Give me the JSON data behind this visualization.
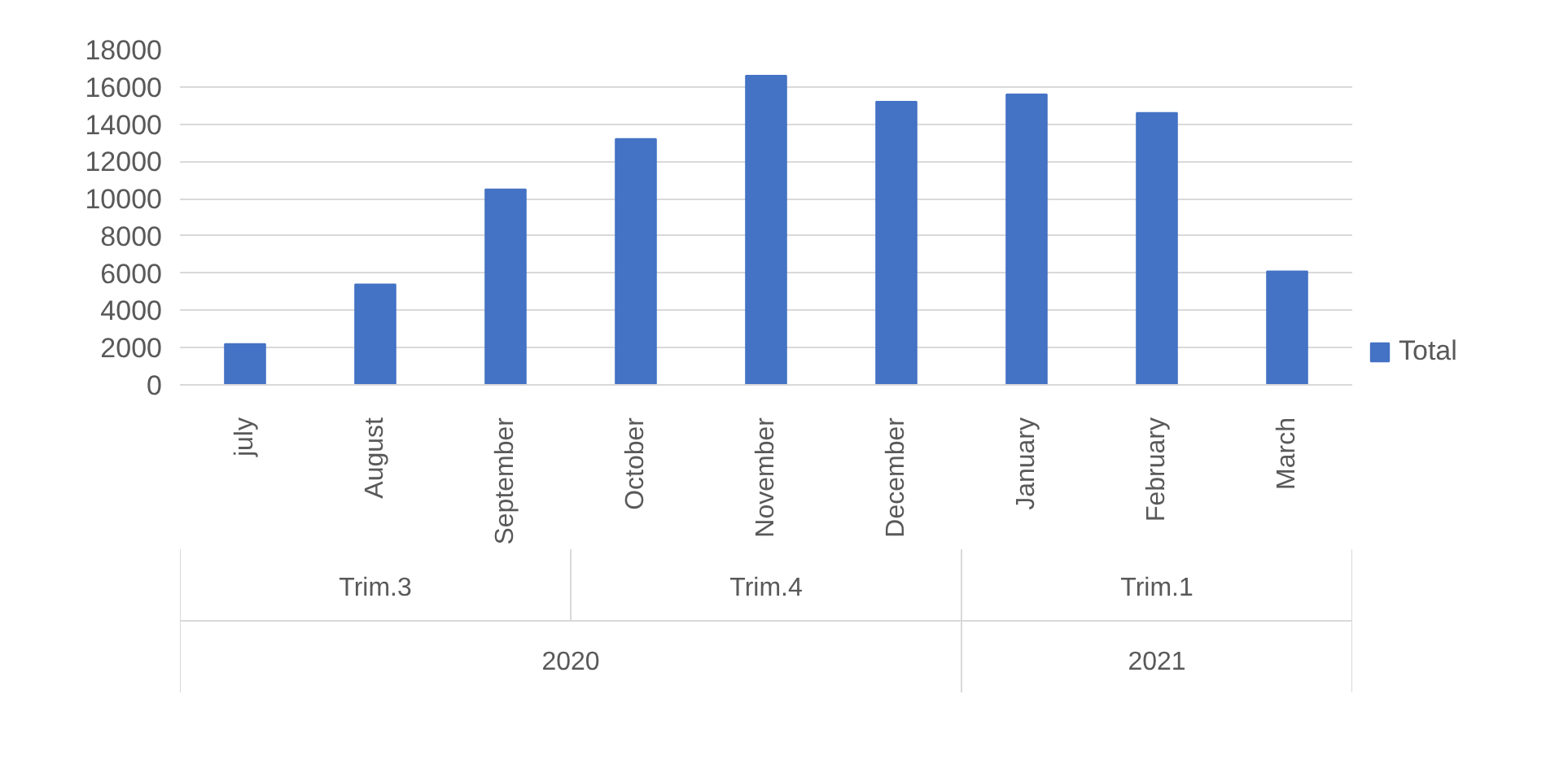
{
  "chart_data": {
    "type": "bar",
    "categories": [
      "july",
      "August",
      "September",
      "October",
      "November",
      "December",
      "January",
      "February",
      "March"
    ],
    "series": [
      {
        "name": "Total",
        "color": "#4472c4",
        "values": [
          2200,
          5400,
          10500,
          13200,
          16600,
          15200,
          15600,
          14600,
          6100
        ]
      }
    ],
    "ylim": [
      0,
      18000
    ],
    "yticks": [
      0,
      2000,
      4000,
      6000,
      8000,
      10000,
      12000,
      14000,
      16000,
      18000
    ],
    "grid": "y",
    "legend": "right",
    "annotations": [
      "Trim.3",
      "Trim.4",
      "Trim.1",
      "2020",
      "2021"
    ]
  }
}
